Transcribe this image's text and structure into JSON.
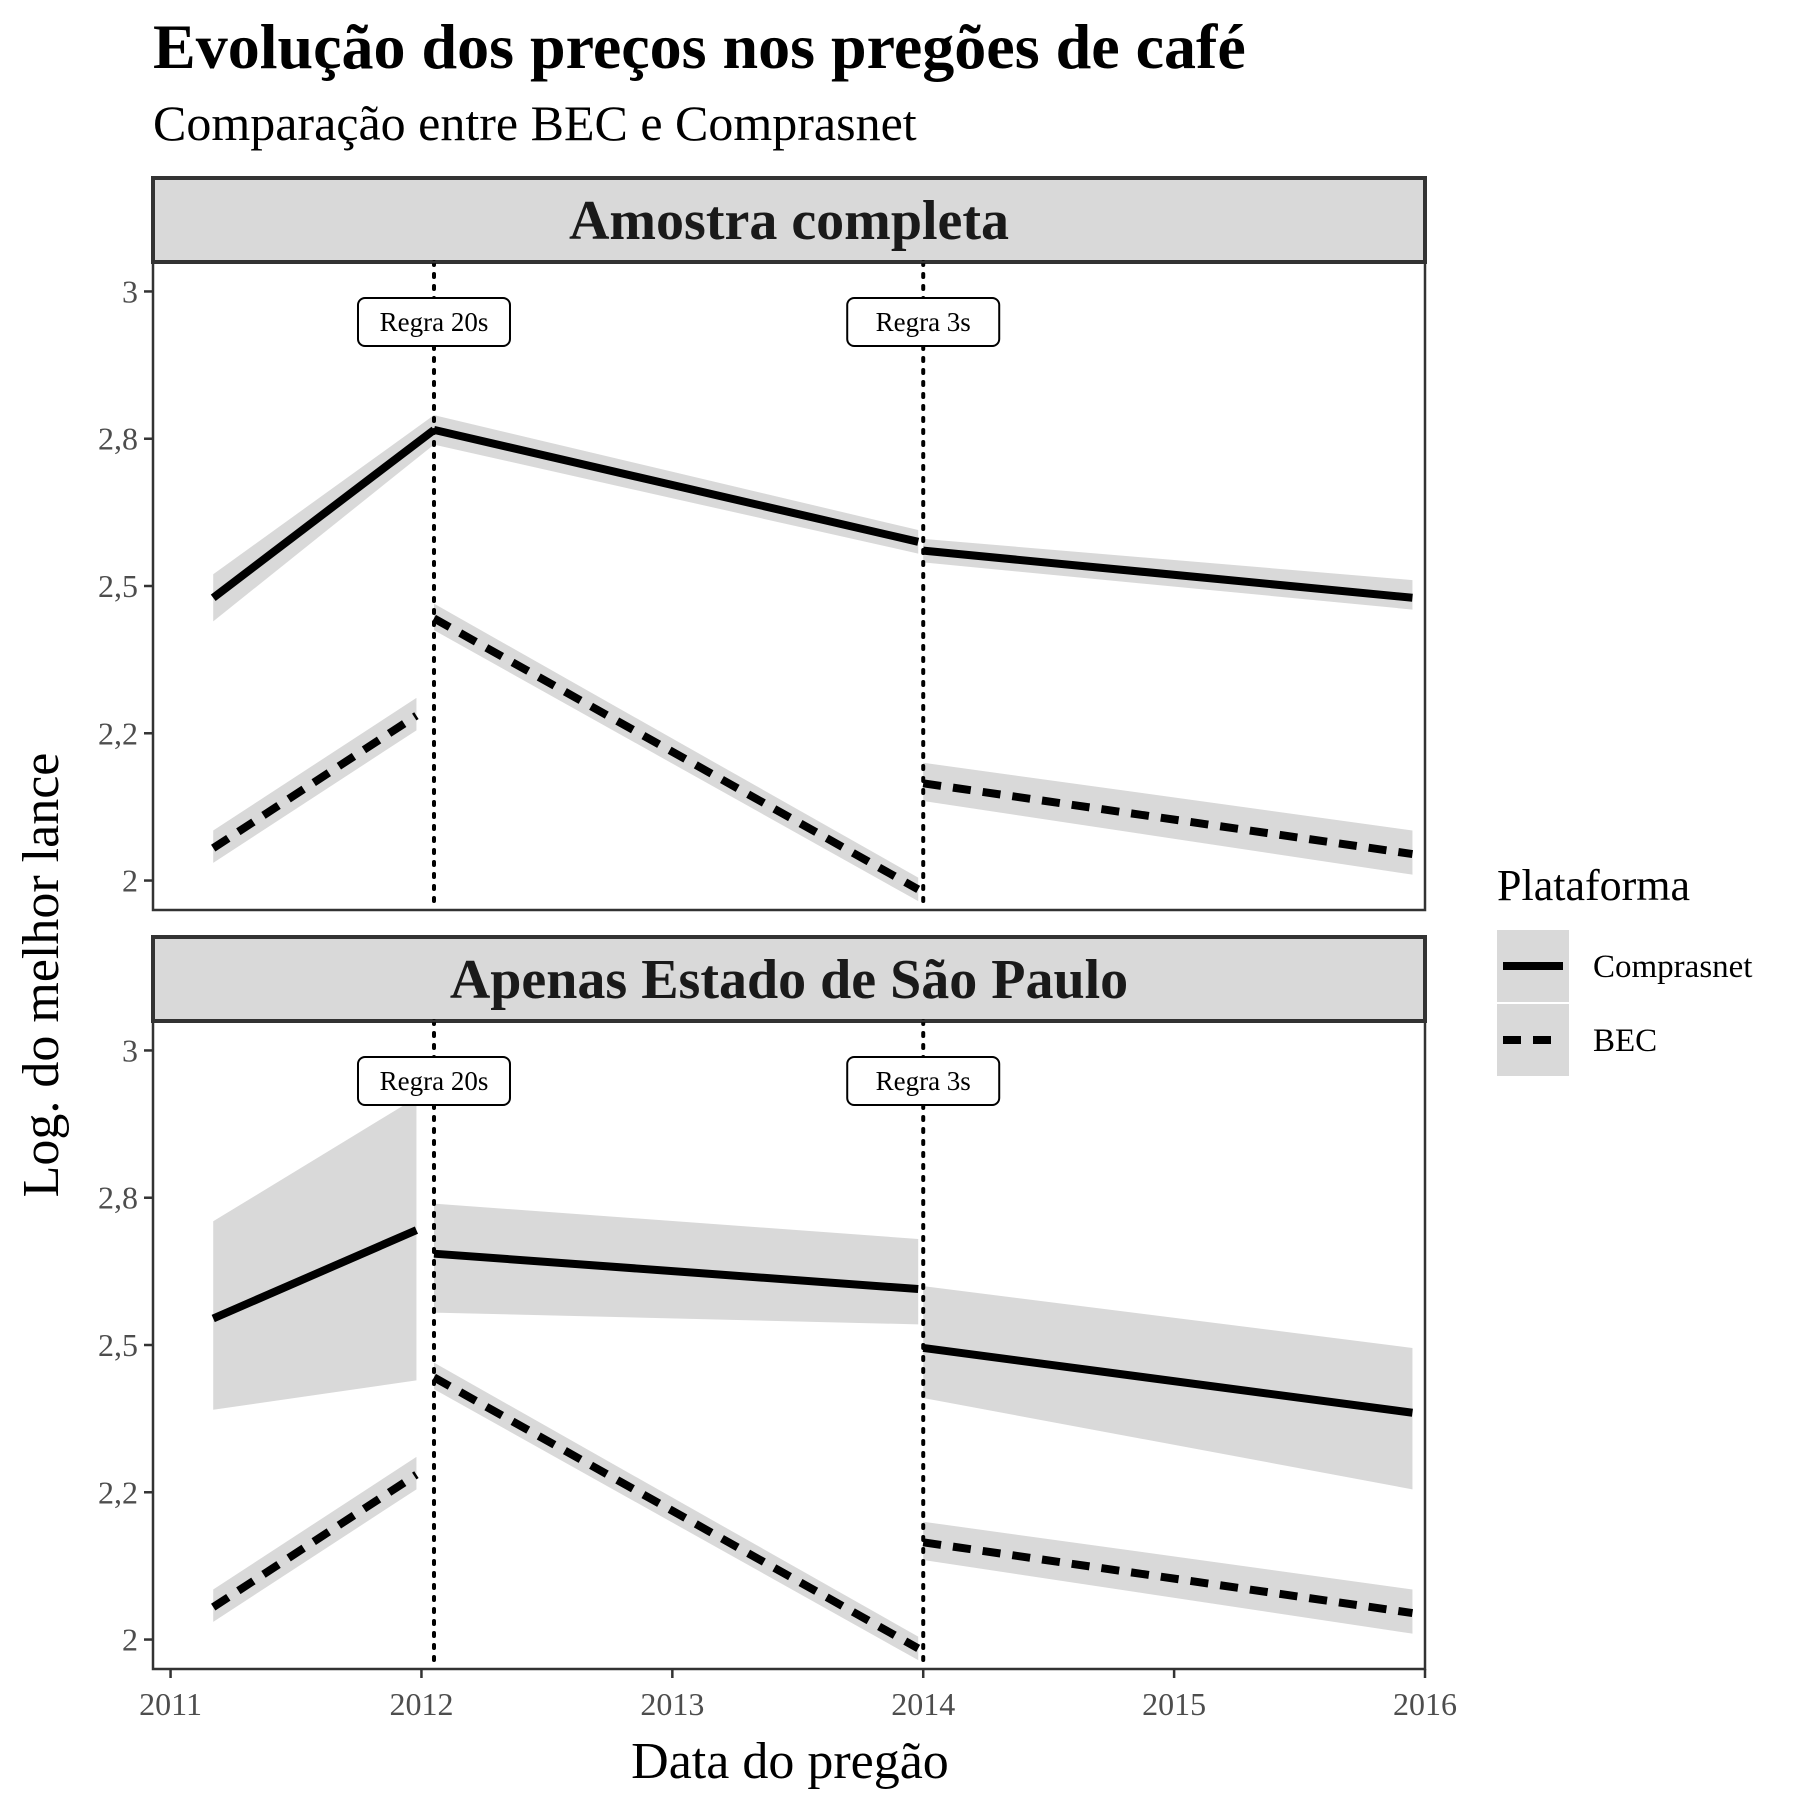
{
  "chart_data": {
    "type": "line",
    "title": "Evolução dos preços nos pregões de café",
    "subtitle": "Comparação entre BEC e Comprasnet",
    "xlabel": "Data do pregão",
    "ylabel": "Log. do melhor lance",
    "x_ticks": [
      "2011",
      "2012",
      "2013",
      "2014",
      "2015",
      "2016"
    ],
    "y_ticks": [
      {
        "value": 2.0,
        "label": "2"
      },
      {
        "value": 2.25,
        "label": "2,2"
      },
      {
        "value": 2.5,
        "label": "2,5"
      },
      {
        "value": 2.75,
        "label": "2,8"
      },
      {
        "value": 3.0,
        "label": "3"
      }
    ],
    "xlim": [
      2010.93,
      2016.0
    ],
    "ylim": [
      1.95,
      3.05
    ],
    "grid": false,
    "legend": {
      "title": "Plataforma",
      "position": "right",
      "entries": [
        {
          "label": "Comprasnet",
          "linetype": "solid"
        },
        {
          "label": "BEC",
          "linetype": "dashed"
        }
      ]
    },
    "annotations": [
      {
        "x": 2012.05,
        "label": "Regra 20s"
      },
      {
        "x": 2014.0,
        "label": "Regra 3s"
      }
    ],
    "band_color": "#d9d9d9",
    "line_color": "#000000",
    "panels": [
      {
        "strip": "Amostra completa",
        "series": [
          {
            "name": "Comprasnet",
            "linetype": "solid",
            "segments": [
              {
                "x": [
                  2011.17,
                  2012.05
                ],
                "y": [
                  2.48,
                  2.765
                ],
                "lower": [
                  2.44,
                  2.74
                ],
                "upper": [
                  2.52,
                  2.79
                ]
              },
              {
                "x": [
                  2012.05,
                  2013.98
                ],
                "y": [
                  2.765,
                  2.575
                ],
                "lower": [
                  2.74,
                  2.555
                ],
                "upper": [
                  2.79,
                  2.595
                ]
              },
              {
                "x": [
                  2014.0,
                  2015.95
                ],
                "y": [
                  2.56,
                  2.48
                ],
                "lower": [
                  2.54,
                  2.46
                ],
                "upper": [
                  2.58,
                  2.51
                ]
              }
            ]
          },
          {
            "name": "BEC",
            "linetype": "dashed",
            "segments": [
              {
                "x": [
                  2011.17,
                  2011.98
                ],
                "y": [
                  2.055,
                  2.28
                ],
                "lower": [
                  2.03,
                  2.255
                ],
                "upper": [
                  2.085,
                  2.31
                ]
              },
              {
                "x": [
                  2012.05,
                  2013.98
                ],
                "y": [
                  2.445,
                  1.985
                ],
                "lower": [
                  2.425,
                  1.965
                ],
                "upper": [
                  2.47,
                  2.005
                ]
              },
              {
                "x": [
                  2014.0,
                  2015.95
                ],
                "y": [
                  2.165,
                  2.045
                ],
                "lower": [
                  2.135,
                  2.01
                ],
                "upper": [
                  2.2,
                  2.085
                ]
              }
            ]
          }
        ]
      },
      {
        "strip": "Apenas Estado de São Paulo",
        "series": [
          {
            "name": "Comprasnet",
            "linetype": "solid",
            "segments": [
              {
                "x": [
                  2011.17,
                  2011.98
                ],
                "y": [
                  2.545,
                  2.695
                ],
                "lower": [
                  2.39,
                  2.44
                ],
                "upper": [
                  2.71,
                  2.92
                ]
              },
              {
                "x": [
                  2012.05,
                  2013.98
                ],
                "y": [
                  2.655,
                  2.595
                ],
                "lower": [
                  2.555,
                  2.535
                ],
                "upper": [
                  2.74,
                  2.68
                ]
              },
              {
                "x": [
                  2014.0,
                  2015.95
                ],
                "y": [
                  2.495,
                  2.385
                ],
                "lower": [
                  2.41,
                  2.255
                ],
                "upper": [
                  2.6,
                  2.495
                ]
              }
            ]
          },
          {
            "name": "BEC",
            "linetype": "dashed",
            "segments": [
              {
                "x": [
                  2011.17,
                  2011.98
                ],
                "y": [
                  2.055,
                  2.28
                ],
                "lower": [
                  2.03,
                  2.255
                ],
                "upper": [
                  2.085,
                  2.31
                ]
              },
              {
                "x": [
                  2012.05,
                  2013.98
                ],
                "y": [
                  2.445,
                  1.985
                ],
                "lower": [
                  2.425,
                  1.965
                ],
                "upper": [
                  2.47,
                  2.005
                ]
              },
              {
                "x": [
                  2014.0,
                  2015.95
                ],
                "y": [
                  2.165,
                  2.045
                ],
                "lower": [
                  2.135,
                  2.01
                ],
                "upper": [
                  2.2,
                  2.085
                ]
              }
            ]
          }
        ]
      }
    ]
  }
}
